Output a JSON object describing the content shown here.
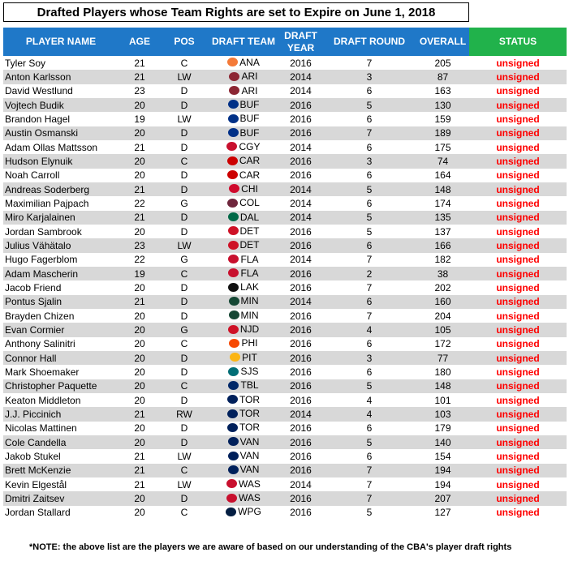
{
  "title": "Drafted Players whose Team Rights are set to Expire on June 1, 2018",
  "headers": {
    "player": "PLAYER NAME",
    "age": "AGE",
    "pos": "POS",
    "draft_team": "DRAFT TEAM",
    "draft_year": "DRAFT YEAR",
    "draft_round": "DRAFT ROUND",
    "overall": "OVERALL",
    "status": "STATUS"
  },
  "colors": {
    "header_blue": "#1f78c8",
    "header_green": "#21b24b",
    "status_red": "#ff0000",
    "alt_row": "#d8d8d8"
  },
  "rows": [
    {
      "name": "Tyler Soy",
      "age": "21",
      "pos": "C",
      "team": "ANA",
      "team_icon": "ducks-logo-icon",
      "logo_color": "#f47a38",
      "year": "2016",
      "round": "7",
      "overall": "205",
      "status": "unsigned"
    },
    {
      "name": "Anton Karlsson",
      "age": "21",
      "pos": "LW",
      "team": "ARI",
      "team_icon": "coyotes-logo-icon",
      "logo_color": "#8c2633",
      "year": "2014",
      "round": "3",
      "overall": "87",
      "status": "unsigned"
    },
    {
      "name": "David Westlund",
      "age": "23",
      "pos": "D",
      "team": "ARI",
      "team_icon": "coyotes-logo-icon",
      "logo_color": "#8c2633",
      "year": "2014",
      "round": "6",
      "overall": "163",
      "status": "unsigned"
    },
    {
      "name": "Vojtech Budik",
      "age": "20",
      "pos": "D",
      "team": "BUF",
      "team_icon": "sabres-logo-icon",
      "logo_color": "#003087",
      "year": "2016",
      "round": "5",
      "overall": "130",
      "status": "unsigned"
    },
    {
      "name": "Brandon Hagel",
      "age": "19",
      "pos": "LW",
      "team": "BUF",
      "team_icon": "sabres-logo-icon",
      "logo_color": "#003087",
      "year": "2016",
      "round": "6",
      "overall": "159",
      "status": "unsigned"
    },
    {
      "name": "Austin Osmanski",
      "age": "20",
      "pos": "D",
      "team": "BUF",
      "team_icon": "sabres-logo-icon",
      "logo_color": "#003087",
      "year": "2016",
      "round": "7",
      "overall": "189",
      "status": "unsigned"
    },
    {
      "name": "Adam Ollas Mattsson",
      "age": "21",
      "pos": "D",
      "team": "CGY",
      "team_icon": "flames-logo-icon",
      "logo_color": "#c8102e",
      "year": "2014",
      "round": "6",
      "overall": "175",
      "status": "unsigned"
    },
    {
      "name": "Hudson Elynuik",
      "age": "20",
      "pos": "C",
      "team": "CAR",
      "team_icon": "hurricanes-logo-icon",
      "logo_color": "#cc0000",
      "year": "2016",
      "round": "3",
      "overall": "74",
      "status": "unsigned"
    },
    {
      "name": "Noah Carroll",
      "age": "20",
      "pos": "D",
      "team": "CAR",
      "team_icon": "hurricanes-logo-icon",
      "logo_color": "#cc0000",
      "year": "2016",
      "round": "6",
      "overall": "164",
      "status": "unsigned"
    },
    {
      "name": "Andreas Soderberg",
      "age": "21",
      "pos": "D",
      "team": "CHI",
      "team_icon": "blackhawks-logo-icon",
      "logo_color": "#cf0a2c",
      "year": "2014",
      "round": "5",
      "overall": "148",
      "status": "unsigned"
    },
    {
      "name": "Maximilian Pajpach",
      "age": "22",
      "pos": "G",
      "team": "COL",
      "team_icon": "avalanche-logo-icon",
      "logo_color": "#6f263d",
      "year": "2014",
      "round": "6",
      "overall": "174",
      "status": "unsigned"
    },
    {
      "name": "Miro Karjalainen",
      "age": "21",
      "pos": "D",
      "team": "DAL",
      "team_icon": "stars-logo-icon",
      "logo_color": "#006847",
      "year": "2014",
      "round": "5",
      "overall": "135",
      "status": "unsigned"
    },
    {
      "name": "Jordan Sambrook",
      "age": "20",
      "pos": "D",
      "team": "DET",
      "team_icon": "red-wings-logo-icon",
      "logo_color": "#ce1126",
      "year": "2016",
      "round": "5",
      "overall": "137",
      "status": "unsigned"
    },
    {
      "name": "Julius Vähätalo",
      "age": "23",
      "pos": "LW",
      "team": "DET",
      "team_icon": "red-wings-logo-icon",
      "logo_color": "#ce1126",
      "year": "2016",
      "round": "6",
      "overall": "166",
      "status": "unsigned"
    },
    {
      "name": "Hugo Fagerblom",
      "age": "22",
      "pos": "G",
      "team": "FLA",
      "team_icon": "panthers-logo-icon",
      "logo_color": "#c8102e",
      "year": "2014",
      "round": "7",
      "overall": "182",
      "status": "unsigned"
    },
    {
      "name": "Adam Mascherin",
      "age": "19",
      "pos": "C",
      "team": "FLA",
      "team_icon": "panthers-logo-icon",
      "logo_color": "#c8102e",
      "year": "2016",
      "round": "2",
      "overall": "38",
      "status": "unsigned"
    },
    {
      "name": "Jacob Friend",
      "age": "20",
      "pos": "D",
      "team": "LAK",
      "team_icon": "kings-logo-icon",
      "logo_color": "#111111",
      "year": "2016",
      "round": "7",
      "overall": "202",
      "status": "unsigned"
    },
    {
      "name": "Pontus Sjalin",
      "age": "21",
      "pos": "D",
      "team": "MIN",
      "team_icon": "wild-logo-icon",
      "logo_color": "#154734",
      "year": "2014",
      "round": "6",
      "overall": "160",
      "status": "unsigned"
    },
    {
      "name": "Brayden Chizen",
      "age": "20",
      "pos": "D",
      "team": "MIN",
      "team_icon": "wild-logo-icon",
      "logo_color": "#154734",
      "year": "2016",
      "round": "7",
      "overall": "204",
      "status": "unsigned"
    },
    {
      "name": "Evan Cormier",
      "age": "20",
      "pos": "G",
      "team": "NJD",
      "team_icon": "devils-logo-icon",
      "logo_color": "#ce1126",
      "year": "2016",
      "round": "4",
      "overall": "105",
      "status": "unsigned"
    },
    {
      "name": "Anthony Salinitri",
      "age": "20",
      "pos": "C",
      "team": "PHI",
      "team_icon": "flyers-logo-icon",
      "logo_color": "#f74902",
      "year": "2016",
      "round": "6",
      "overall": "172",
      "status": "unsigned"
    },
    {
      "name": "Connor Hall",
      "age": "20",
      "pos": "D",
      "team": "PIT",
      "team_icon": "penguins-logo-icon",
      "logo_color": "#fcb514",
      "year": "2016",
      "round": "3",
      "overall": "77",
      "status": "unsigned"
    },
    {
      "name": "Mark Shoemaker",
      "age": "20",
      "pos": "D",
      "team": "SJS",
      "team_icon": "sharks-logo-icon",
      "logo_color": "#006d75",
      "year": "2016",
      "round": "6",
      "overall": "180",
      "status": "unsigned"
    },
    {
      "name": "Christopher Paquette",
      "age": "20",
      "pos": "C",
      "team": "TBL",
      "team_icon": "lightning-logo-icon",
      "logo_color": "#002868",
      "year": "2016",
      "round": "5",
      "overall": "148",
      "status": "unsigned"
    },
    {
      "name": "Keaton Middleton",
      "age": "20",
      "pos": "D",
      "team": "TOR",
      "team_icon": "maple-leafs-logo-icon",
      "logo_color": "#00205b",
      "year": "2016",
      "round": "4",
      "overall": "101",
      "status": "unsigned"
    },
    {
      "name": "J.J. Piccinich",
      "age": "21",
      "pos": "RW",
      "team": "TOR",
      "team_icon": "maple-leafs-logo-icon",
      "logo_color": "#00205b",
      "year": "2014",
      "round": "4",
      "overall": "103",
      "status": "unsigned"
    },
    {
      "name": "Nicolas Mattinen",
      "age": "20",
      "pos": "D",
      "team": "TOR",
      "team_icon": "maple-leafs-logo-icon",
      "logo_color": "#00205b",
      "year": "2016",
      "round": "6",
      "overall": "179",
      "status": "unsigned"
    },
    {
      "name": "Cole Candella",
      "age": "20",
      "pos": "D",
      "team": "VAN",
      "team_icon": "canucks-logo-icon",
      "logo_color": "#00205b",
      "year": "2016",
      "round": "5",
      "overall": "140",
      "status": "unsigned"
    },
    {
      "name": "Jakob Stukel",
      "age": "21",
      "pos": "LW",
      "team": "VAN",
      "team_icon": "canucks-logo-icon",
      "logo_color": "#00205b",
      "year": "2016",
      "round": "6",
      "overall": "154",
      "status": "unsigned"
    },
    {
      "name": "Brett McKenzie",
      "age": "21",
      "pos": "C",
      "team": "VAN",
      "team_icon": "canucks-logo-icon",
      "logo_color": "#00205b",
      "year": "2016",
      "round": "7",
      "overall": "194",
      "status": "unsigned"
    },
    {
      "name": "Kevin Elgestål",
      "age": "21",
      "pos": "LW",
      "team": "WAS",
      "team_icon": "capitals-logo-icon",
      "logo_color": "#c8102e",
      "year": "2014",
      "round": "7",
      "overall": "194",
      "status": "unsigned"
    },
    {
      "name": "Dmitri Zaitsev",
      "age": "20",
      "pos": "D",
      "team": "WAS",
      "team_icon": "capitals-logo-icon",
      "logo_color": "#c8102e",
      "year": "2016",
      "round": "7",
      "overall": "207",
      "status": "unsigned"
    },
    {
      "name": "Jordan Stallard",
      "age": "20",
      "pos": "C",
      "team": "WPG",
      "team_icon": "jets-logo-icon",
      "logo_color": "#041e42",
      "year": "2016",
      "round": "5",
      "overall": "127",
      "status": "unsigned"
    }
  ],
  "note": "*NOTE: the above list are the players we are aware of based on our understanding of the CBA's player draft rights"
}
